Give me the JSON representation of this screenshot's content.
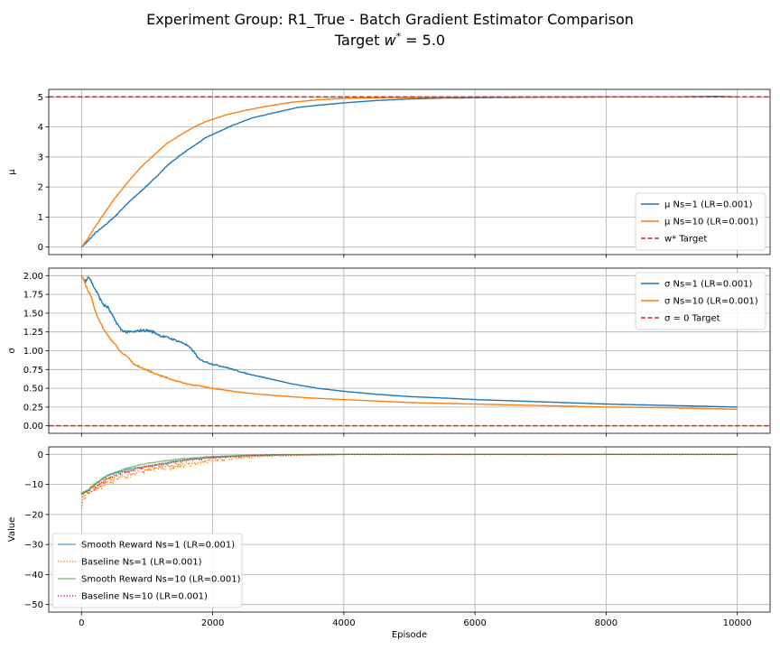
{
  "figure": {
    "title_line1": "Experiment Group: R1_True - Batch Gradient Estimator Comparison",
    "title_line2": "Target w* = 5.0"
  },
  "chart_data": [
    {
      "type": "line",
      "ylabel": "μ",
      "xlim": [
        -500,
        10500
      ],
      "ylim": [
        -0.25,
        5.25
      ],
      "xticks": [
        0,
        2000,
        4000,
        6000,
        8000,
        10000
      ],
      "yticks": [
        0,
        1,
        2,
        3,
        4,
        5
      ],
      "grid": true,
      "legend_position": "lower-right",
      "hline": {
        "y": 5.0,
        "label": "w* Target",
        "color": "#d62728",
        "style": "dashed"
      },
      "series": [
        {
          "name": "μ Ns=1 (LR=0.001)",
          "color": "#1f77b4",
          "style": "solid",
          "noise": 0.02,
          "x": [
            0,
            100,
            200,
            300,
            500,
            700,
            900,
            1100,
            1300,
            1500,
            1700,
            1900,
            2100,
            2300,
            2600,
            3000,
            3300,
            3600,
            4000,
            4500,
            5000,
            5500,
            6000,
            7000,
            8000,
            9000,
            9700,
            10000
          ],
          "y": [
            0,
            0.2,
            0.45,
            0.62,
            1.0,
            1.45,
            1.85,
            2.25,
            2.7,
            3.05,
            3.35,
            3.65,
            3.85,
            4.05,
            4.3,
            4.5,
            4.65,
            4.72,
            4.8,
            4.88,
            4.93,
            4.96,
            4.97,
            4.99,
            5.0,
            5.0,
            5.02,
            5.0
          ]
        },
        {
          "name": "μ Ns=10 (LR=0.001)",
          "color": "#ff7f0e",
          "style": "solid",
          "noise": 0.005,
          "x": [
            0,
            100,
            200,
            300,
            500,
            700,
            900,
            1100,
            1300,
            1500,
            1700,
            1900,
            2200,
            2500,
            2800,
            3200,
            3600,
            4000,
            4500,
            5000,
            6000,
            7000,
            8000,
            9000,
            10000
          ],
          "y": [
            0,
            0.3,
            0.65,
            0.98,
            1.6,
            2.15,
            2.65,
            3.05,
            3.45,
            3.72,
            3.98,
            4.18,
            4.4,
            4.55,
            4.68,
            4.82,
            4.9,
            4.95,
            4.97,
            4.98,
            4.99,
            4.995,
            5.0,
            5.0,
            5.0
          ]
        }
      ]
    },
    {
      "type": "line",
      "ylabel": "σ",
      "xlim": [
        -500,
        10500
      ],
      "ylim": [
        -0.1,
        2.1
      ],
      "xticks": [
        0,
        2000,
        4000,
        6000,
        8000,
        10000
      ],
      "yticks": [
        0.0,
        0.25,
        0.5,
        0.75,
        1.0,
        1.25,
        1.5,
        1.75,
        2.0
      ],
      "grid": true,
      "legend_position": "upper-right",
      "hline": {
        "y": 0.0,
        "label": "σ = 0 Target",
        "color": "#d62728",
        "style": "dashed"
      },
      "series": [
        {
          "name": "σ Ns=1 (LR=0.001)",
          "color": "#1f77b4",
          "style": "solid",
          "noise": 0.02,
          "x": [
            0,
            30,
            60,
            100,
            130,
            160,
            200,
            250,
            300,
            350,
            400,
            450,
            500,
            550,
            600,
            650,
            700,
            800,
            900,
            1000,
            1100,
            1200,
            1300,
            1400,
            1500,
            1600,
            1700,
            1800,
            2000,
            2200,
            2500,
            2800,
            3200,
            3600,
            4000,
            4500,
            5000,
            6000,
            7000,
            8000,
            9000,
            10000
          ],
          "y": [
            2.0,
            1.95,
            1.93,
            1.99,
            1.96,
            1.9,
            1.83,
            1.75,
            1.66,
            1.6,
            1.58,
            1.5,
            1.42,
            1.35,
            1.28,
            1.26,
            1.25,
            1.25,
            1.27,
            1.27,
            1.25,
            1.2,
            1.18,
            1.15,
            1.12,
            1.08,
            1.0,
            0.88,
            0.82,
            0.78,
            0.7,
            0.64,
            0.56,
            0.5,
            0.46,
            0.42,
            0.39,
            0.35,
            0.32,
            0.29,
            0.27,
            0.25
          ]
        },
        {
          "name": "σ Ns=10 (LR=0.001)",
          "color": "#ff7f0e",
          "style": "solid",
          "noise": 0.012,
          "x": [
            0,
            100,
            150,
            200,
            300,
            400,
            500,
            600,
            700,
            800,
            1000,
            1200,
            1400,
            1600,
            1800,
            2000,
            2300,
            2600,
            3000,
            3500,
            4000,
            4500,
            5000,
            6000,
            7000,
            8000,
            9000,
            10000
          ],
          "y": [
            2.0,
            1.8,
            1.72,
            1.55,
            1.35,
            1.2,
            1.1,
            0.98,
            0.92,
            0.82,
            0.74,
            0.67,
            0.61,
            0.56,
            0.53,
            0.5,
            0.46,
            0.43,
            0.4,
            0.37,
            0.35,
            0.33,
            0.31,
            0.29,
            0.27,
            0.25,
            0.24,
            0.22
          ]
        }
      ]
    },
    {
      "type": "line",
      "ylabel": "Value",
      "xlabel": "Episode",
      "xlim": [
        -500,
        10500
      ],
      "ylim": [
        -52.5,
        2.5
      ],
      "xticks": [
        0,
        2000,
        4000,
        6000,
        8000,
        10000
      ],
      "xticklabels": [
        "0",
        "2000",
        "4000",
        "6000",
        "8000",
        "10000"
      ],
      "yticks": [
        -50,
        -40,
        -30,
        -20,
        -10,
        0
      ],
      "grid": true,
      "legend_position": "lower-left",
      "series": [
        {
          "name": "Smooth Reward Ns=1 (LR=0.001)",
          "color": "#1f77b4",
          "style": "solid",
          "alpha": 0.6,
          "noise": 0.3,
          "x": [
            0,
            100,
            200,
            400,
            700,
            1000,
            1500,
            2000,
            2500,
            3000,
            4000,
            6000,
            8000,
            10000
          ],
          "y": [
            -13,
            -12,
            -10,
            -7,
            -5,
            -4,
            -2,
            -1,
            -0.5,
            -0.2,
            0,
            0,
            0,
            0
          ]
        },
        {
          "name": "Baseline Ns=1 (LR=0.001)",
          "color": "#ff7f0e",
          "style": "dotted",
          "alpha": 1,
          "noise": 1.6,
          "x": [
            0,
            30,
            100,
            200,
            300,
            400,
            600,
            800,
            1000,
            1200,
            1500,
            1800,
            2100,
            2500,
            3000,
            4000,
            6000,
            8000,
            10000
          ],
          "y": [
            -17,
            -14,
            -12,
            -11,
            -10,
            -9,
            -7.5,
            -6,
            -5,
            -4.5,
            -3.5,
            -2.5,
            -1.5,
            -1,
            -0.5,
            0,
            0,
            0,
            0
          ]
        },
        {
          "name": "Smooth Reward Ns=10 (LR=0.001)",
          "color": "#2ca02c",
          "style": "solid",
          "alpha": 0.6,
          "noise": 0.2,
          "x": [
            0,
            100,
            200,
            400,
            700,
            1000,
            1500,
            2000,
            2500,
            3000,
            4000,
            6000,
            8000,
            10000
          ],
          "y": [
            -13,
            -12,
            -10,
            -7,
            -4.5,
            -3,
            -1.5,
            -0.7,
            -0.3,
            -0.1,
            0,
            0,
            0,
            0
          ]
        },
        {
          "name": "Baseline Ns=10 (LR=0.001)",
          "color": "#d62728",
          "style": "dotted",
          "alpha": 1,
          "noise": 0.45,
          "x": [
            0,
            100,
            200,
            300,
            400,
            500,
            700,
            1000,
            1300,
            1600,
            2000,
            2500,
            3000,
            4000,
            6000,
            8000,
            10000
          ],
          "y": [
            -13,
            -12.5,
            -11.5,
            -9.5,
            -8,
            -7,
            -5.5,
            -4,
            -3,
            -2,
            -1,
            -0.5,
            -0.2,
            0,
            0,
            0,
            0
          ]
        }
      ]
    }
  ]
}
